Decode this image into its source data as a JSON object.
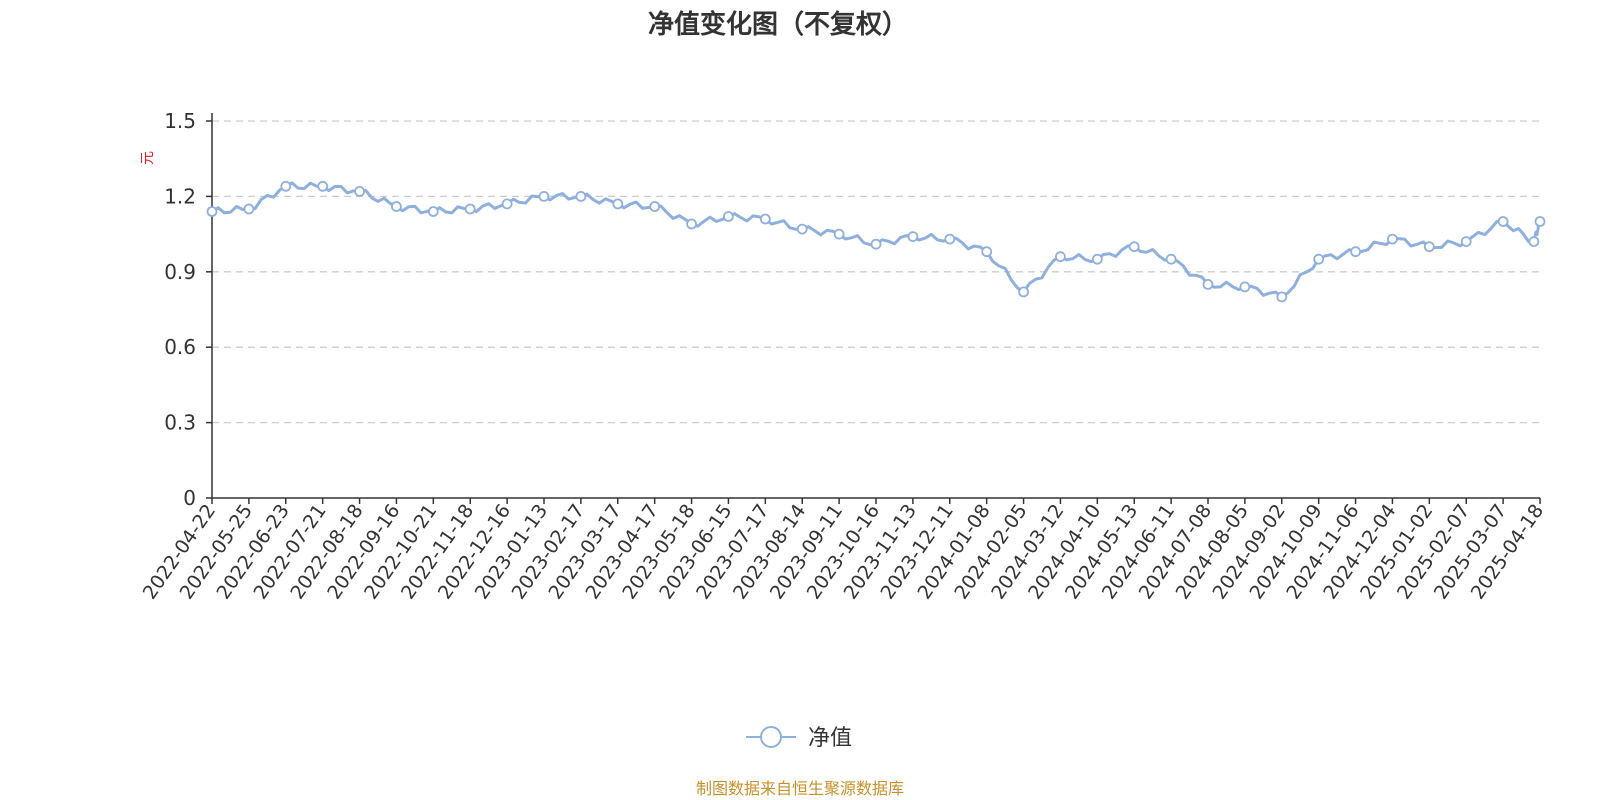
{
  "colors": {
    "series": "#8fb0dd",
    "source": "#c8902a",
    "ylabel": "#e02020",
    "grid": "#cccccc",
    "axis": "#333333"
  },
  "chart_data": {
    "type": "line",
    "title": "净值变化图（不复权）",
    "ylabel": "元",
    "ylim": [
      0,
      1.5
    ],
    "yticks": [
      "0",
      "0.3",
      "0.6",
      "0.9",
      "1.2",
      "1.5"
    ],
    "grid": true,
    "legend_position": "bottom-center",
    "xticks": [
      "2022-04-22",
      "2022-05-25",
      "2022-06-23",
      "2022-07-21",
      "2022-08-18",
      "2022-09-16",
      "2022-10-21",
      "2022-11-18",
      "2022-12-16",
      "2023-01-13",
      "2023-02-17",
      "2023-03-17",
      "2023-04-17",
      "2023-05-18",
      "2023-06-15",
      "2023-07-17",
      "2023-08-14",
      "2023-09-11",
      "2023-10-16",
      "2023-11-13",
      "2023-12-11",
      "2024-01-08",
      "2024-02-05",
      "2024-03-12",
      "2024-04-10",
      "2024-05-13",
      "2024-06-11",
      "2024-07-08",
      "2024-08-05",
      "2024-09-02",
      "2024-10-09",
      "2024-11-06",
      "2024-12-04",
      "2025-01-02",
      "2025-02-07",
      "2025-03-07",
      "2025-04-18"
    ],
    "series": [
      {
        "name": "净值",
        "x": [
          "2022-04-22",
          "2022-05-25",
          "2022-06-23",
          "2022-07-21",
          "2022-08-18",
          "2022-09-16",
          "2022-10-21",
          "2022-11-18",
          "2022-12-16",
          "2023-01-13",
          "2023-02-17",
          "2023-03-17",
          "2023-04-17",
          "2023-05-18",
          "2023-06-15",
          "2023-07-17",
          "2023-08-14",
          "2023-09-11",
          "2023-10-16",
          "2023-11-13",
          "2023-12-11",
          "2024-01-08",
          "2024-02-05",
          "2024-03-12",
          "2024-04-10",
          "2024-05-13",
          "2024-06-11",
          "2024-07-08",
          "2024-08-05",
          "2024-09-02",
          "2024-10-09",
          "2024-11-06",
          "2024-12-04",
          "2025-01-02",
          "2025-02-07",
          "2025-03-07",
          "2025-04-11",
          "2025-04-18"
        ],
        "values": [
          1.14,
          1.15,
          1.24,
          1.24,
          1.22,
          1.16,
          1.14,
          1.15,
          1.17,
          1.2,
          1.2,
          1.17,
          1.16,
          1.09,
          1.12,
          1.11,
          1.07,
          1.05,
          1.01,
          1.04,
          1.03,
          0.98,
          0.82,
          0.96,
          0.95,
          1.0,
          0.95,
          0.85,
          0.84,
          0.8,
          0.95,
          0.98,
          1.03,
          1.0,
          1.02,
          1.1,
          1.02,
          1.1
        ]
      }
    ]
  },
  "legend": {
    "label": "净值"
  },
  "source": {
    "text": "制图数据来自恒生聚源数据库"
  }
}
